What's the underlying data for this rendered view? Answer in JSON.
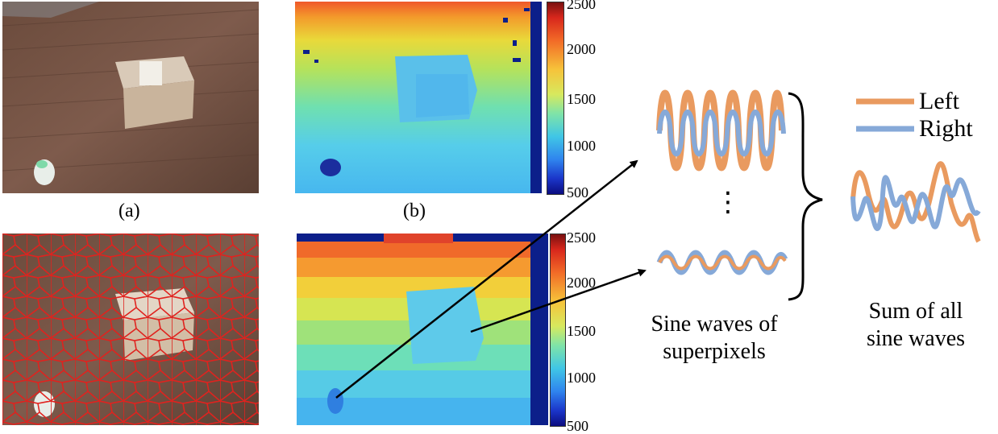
{
  "panels": {
    "a_label": "(a)",
    "b_label": "(b)"
  },
  "colorbar_top": {
    "ticks": [
      "2500",
      "2000",
      "1500",
      "1000",
      "500"
    ]
  },
  "colorbar_bottom": {
    "ticks": [
      "2500",
      "2000",
      "1500",
      "1000",
      "500"
    ]
  },
  "ellipsis": "⋮",
  "captions": {
    "superpixel_waves": [
      "Sine waves of",
      "superpixels"
    ],
    "sum_waves": [
      "Sum of all",
      "sine waves"
    ]
  },
  "legend": {
    "left": "Left",
    "right": "Right"
  },
  "colors": {
    "left_wave": "#e99a5f",
    "right_wave": "#86a9d8",
    "superpixel_border": "#e0221e",
    "arrow": "#000000"
  }
}
